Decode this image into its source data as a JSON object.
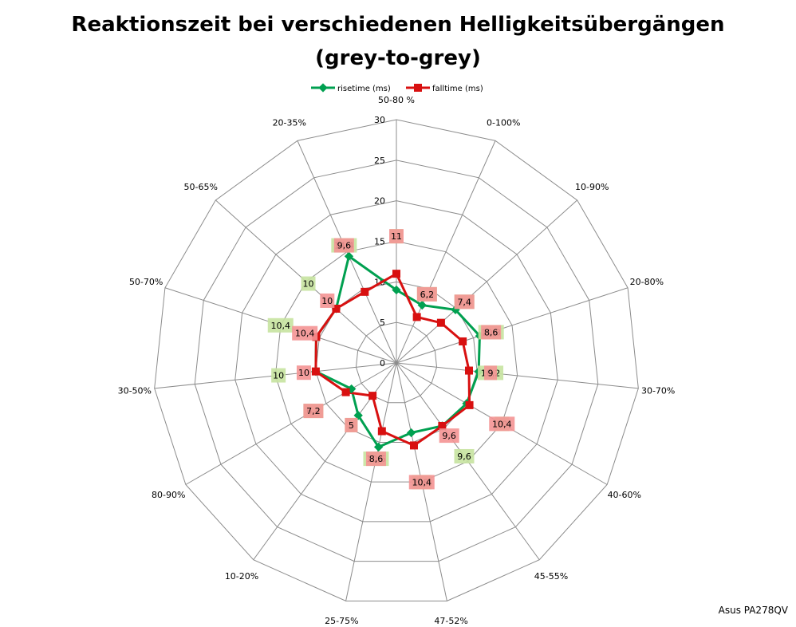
{
  "title_line1": "Reaktionszeit bei verschiedenen Helligkeitsübergängen",
  "title_line2": "(grey-to-grey)",
  "footer": "Asus PA278QV",
  "colors": {
    "risetime": "#00a050",
    "falltime": "#d81010",
    "risetime_label_bg": "#c6e3a0",
    "falltime_label_bg": "#f49494",
    "falltime_label_bg_dark": "#e0724e",
    "grid": "#8c8c8c"
  },
  "chart_data": {
    "type": "radar",
    "categories": [
      "50-80 %",
      "0-100%",
      "10-90%",
      "20-80%",
      "30-70%",
      "40-60%",
      "45-55%",
      "47-52%",
      "25-75%",
      "10-20%",
      "80-90%",
      "30-50%",
      "50-70%",
      "50-65%",
      "20-35%"
    ],
    "series": [
      {
        "name": "risetime (ms)",
        "values": [
          9,
          7.8,
          9.8,
          10.8,
          10.2,
          10,
          9.6,
          8.8,
          10.6,
          8,
          6.4,
          10,
          10.4,
          10,
          14.4
        ]
      },
      {
        "name": "falltime (ms)",
        "values": [
          11,
          6.2,
          7.4,
          8.6,
          9,
          10.4,
          9.6,
          10.4,
          8.6,
          5,
          7.2,
          10,
          10.4,
          10,
          9.6
        ]
      }
    ],
    "rmin": 0,
    "rmax": 30,
    "ticks": [
      0,
      5,
      10,
      15,
      20,
      25,
      30
    ],
    "grid": true,
    "legend_position": "top",
    "data_labels": true
  }
}
